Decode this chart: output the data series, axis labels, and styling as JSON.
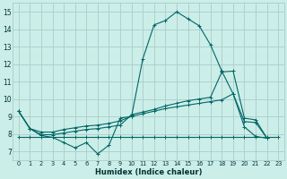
{
  "xlabel": "Humidex (Indice chaleur)",
  "bg_color": "#cceee8",
  "grid_color": "#aacccc",
  "line_color": "#006666",
  "xlim": [
    -0.5,
    23.5
  ],
  "ylim": [
    6.5,
    15.5
  ],
  "xticks": [
    0,
    1,
    2,
    3,
    4,
    5,
    6,
    7,
    8,
    9,
    10,
    11,
    12,
    13,
    14,
    15,
    16,
    17,
    18,
    19,
    20,
    21,
    22,
    23
  ],
  "yticks": [
    7,
    8,
    9,
    10,
    11,
    12,
    13,
    14,
    15
  ],
  "series": [
    {
      "x": [
        0,
        1,
        2,
        3,
        4,
        5,
        6,
        7,
        8,
        9,
        10,
        11,
        12,
        13,
        14,
        15,
        16,
        17,
        18,
        19,
        20,
        21,
        22
      ],
      "y": [
        9.3,
        8.3,
        7.9,
        7.8,
        7.5,
        7.2,
        7.5,
        6.85,
        7.35,
        8.9,
        9.0,
        12.3,
        14.25,
        14.5,
        15.0,
        14.6,
        14.2,
        13.1,
        11.6,
        10.3,
        8.4,
        7.85,
        7.75
      ]
    },
    {
      "x": [
        0,
        1,
        2,
        3,
        4,
        5,
        6,
        7,
        8,
        9,
        10,
        11,
        12,
        13,
        14,
        15,
        16,
        17,
        18,
        19,
        20,
        21,
        22
      ],
      "y": [
        9.3,
        8.3,
        8.1,
        8.1,
        8.25,
        8.35,
        8.45,
        8.5,
        8.6,
        8.75,
        9.0,
        9.15,
        9.3,
        9.45,
        9.55,
        9.65,
        9.75,
        9.85,
        9.95,
        10.3,
        8.7,
        8.65,
        7.75
      ]
    },
    {
      "x": [
        0,
        1,
        2,
        3,
        4,
        5,
        6,
        7,
        8,
        9,
        10,
        11,
        12,
        13,
        14,
        15,
        16,
        17,
        18,
        19,
        20,
        21,
        22
      ],
      "y": [
        9.3,
        8.3,
        7.95,
        7.95,
        8.05,
        8.15,
        8.25,
        8.3,
        8.4,
        8.5,
        9.1,
        9.25,
        9.4,
        9.6,
        9.75,
        9.9,
        10.0,
        10.1,
        11.55,
        11.6,
        8.9,
        8.8,
        7.75
      ]
    },
    {
      "x": [
        0,
        1,
        2,
        3,
        4,
        5,
        6,
        7,
        8,
        9,
        10,
        11,
        12,
        13,
        14,
        15,
        16,
        17,
        18,
        19,
        20,
        21,
        22,
        23
      ],
      "y": [
        7.8,
        7.8,
        7.8,
        7.8,
        7.8,
        7.8,
        7.8,
        7.8,
        7.8,
        7.8,
        7.8,
        7.8,
        7.8,
        7.8,
        7.8,
        7.8,
        7.8,
        7.8,
        7.8,
        7.8,
        7.8,
        7.8,
        7.8,
        7.8
      ]
    }
  ]
}
